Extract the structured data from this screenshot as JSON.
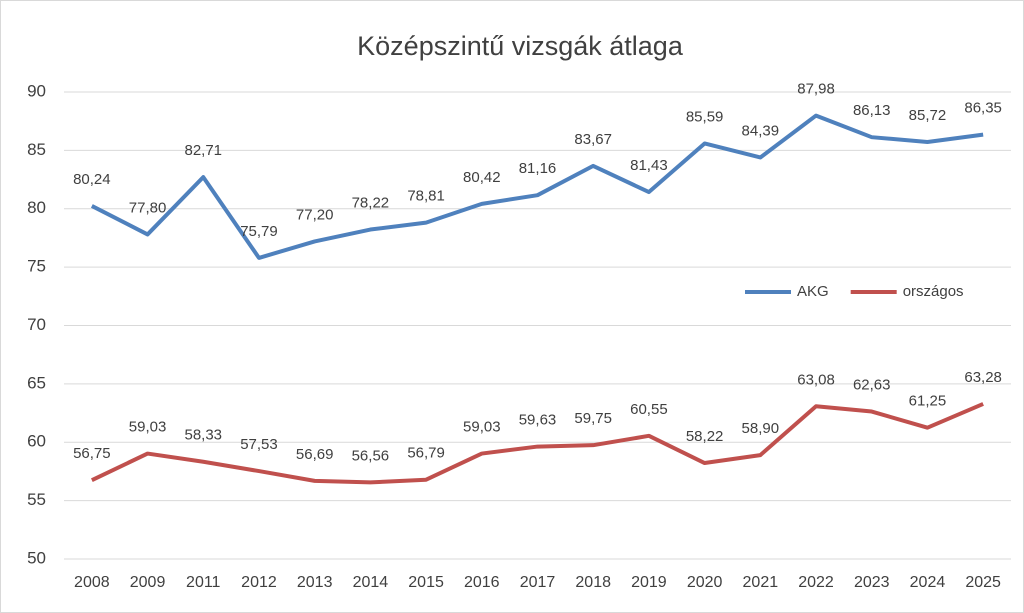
{
  "chart_data": {
    "type": "line",
    "title": "Középszintű vizsgák átlaga",
    "categories": [
      "2008",
      "2009",
      "2011",
      "2012",
      "2013",
      "2014",
      "2015",
      "2016",
      "2017",
      "2018",
      "2019",
      "2020",
      "2021",
      "2022",
      "2023",
      "2024",
      "2025"
    ],
    "series": [
      {
        "name": "AKG",
        "color": "#4f81bd",
        "values": [
          80.24,
          77.8,
          82.71,
          75.79,
          77.2,
          78.22,
          78.81,
          80.42,
          81.16,
          83.67,
          81.43,
          85.59,
          84.39,
          87.98,
          86.13,
          85.72,
          86.35
        ],
        "value_labels": [
          "80,24",
          "77,80",
          "82,71",
          "75,79",
          "77,20",
          "78,22",
          "78,81",
          "80,42",
          "81,16",
          "83,67",
          "81,43",
          "85,59",
          "84,39",
          "87,98",
          "86,13",
          "85,72",
          "86,35"
        ]
      },
      {
        "name": "országos",
        "color": "#c0504d",
        "values": [
          56.75,
          59.03,
          58.33,
          57.53,
          56.69,
          56.56,
          56.79,
          59.03,
          59.63,
          59.75,
          60.55,
          58.22,
          58.9,
          63.08,
          62.63,
          61.25,
          63.28
        ],
        "value_labels": [
          "56,75",
          "59,03",
          "58,33",
          "57,53",
          "56,69",
          "56,56",
          "56,79",
          "59,03",
          "59,63",
          "59,75",
          "60,55",
          "58,22",
          "58,90",
          "63,08",
          "62,63",
          "61,25",
          "63,28"
        ]
      }
    ],
    "ylim": [
      50,
      90
    ],
    "yticks": [
      50,
      55,
      60,
      65,
      70,
      75,
      80,
      85,
      90
    ],
    "grid": true,
    "legend": "right"
  }
}
